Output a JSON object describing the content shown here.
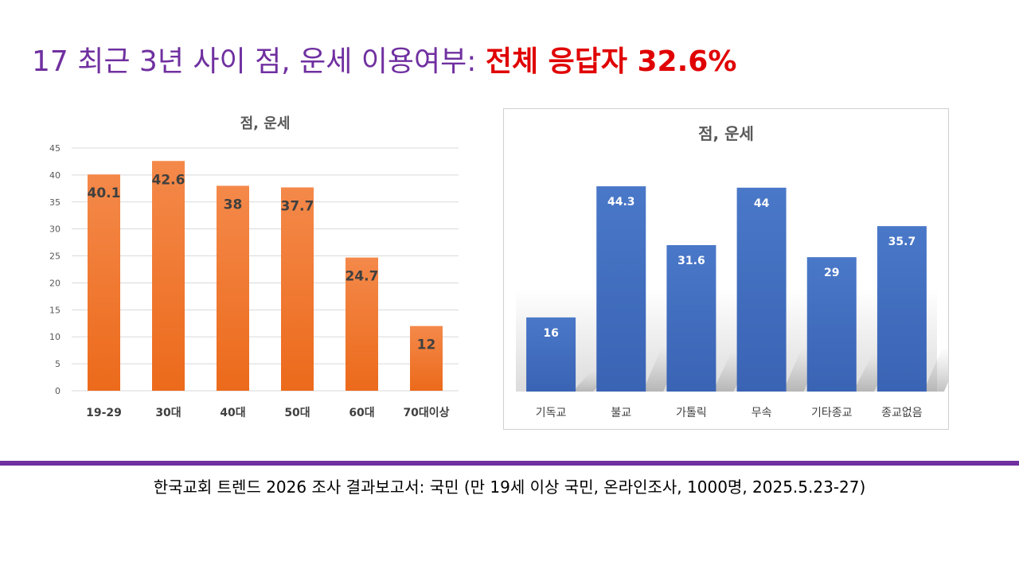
{
  "header": {
    "title_main": "17 최근 3년 사이 점, 운세 이용여부: ",
    "title_highlight": "전체 응답자 32.6%"
  },
  "footer": {
    "source": "한국교회 트렌드 2026 조사 결과보고서: 국민 (만 19세 이상 국민, 온라인조사, 1000명, 2025.5.23-27)"
  },
  "colors": {
    "title_purple": "#7030a0",
    "title_red": "#e00000",
    "orange_top": "#f4894a",
    "orange_bottom": "#ec6a1b",
    "blue_top": "#4a78c8",
    "blue_bottom": "#3a63b4",
    "divider": "#7030a0"
  },
  "chart_data": [
    {
      "type": "bar",
      "title": "점, 운세",
      "categories": [
        "19-29",
        "30대",
        "40대",
        "50대",
        "60대",
        "70대이상"
      ],
      "values": [
        40.1,
        42.6,
        38,
        37.7,
        24.7,
        12
      ],
      "value_labels": [
        "40.1",
        "42.6",
        "38",
        "37.7",
        "24.7",
        "12"
      ],
      "ylim": [
        0,
        45
      ],
      "yticks": [
        0,
        5,
        10,
        15,
        20,
        25,
        30,
        35,
        40,
        45
      ],
      "ytick_labels": [
        "0",
        "5",
        "10",
        "15",
        "20",
        "25",
        "30",
        "35",
        "40",
        "45"
      ],
      "grid": true,
      "xlabel": "",
      "ylabel": ""
    },
    {
      "type": "bar",
      "title": "점, 운세",
      "categories": [
        "기독교",
        "불교",
        "가톨릭",
        "무속",
        "기타종교",
        "종교없음"
      ],
      "values": [
        16,
        44.3,
        31.6,
        44,
        29,
        35.7
      ],
      "value_labels": [
        "16",
        "44.3",
        "31.6",
        "44",
        "29",
        "35.7"
      ],
      "ylim": [
        0,
        45
      ],
      "grid": false,
      "xlabel": "",
      "ylabel": ""
    }
  ]
}
